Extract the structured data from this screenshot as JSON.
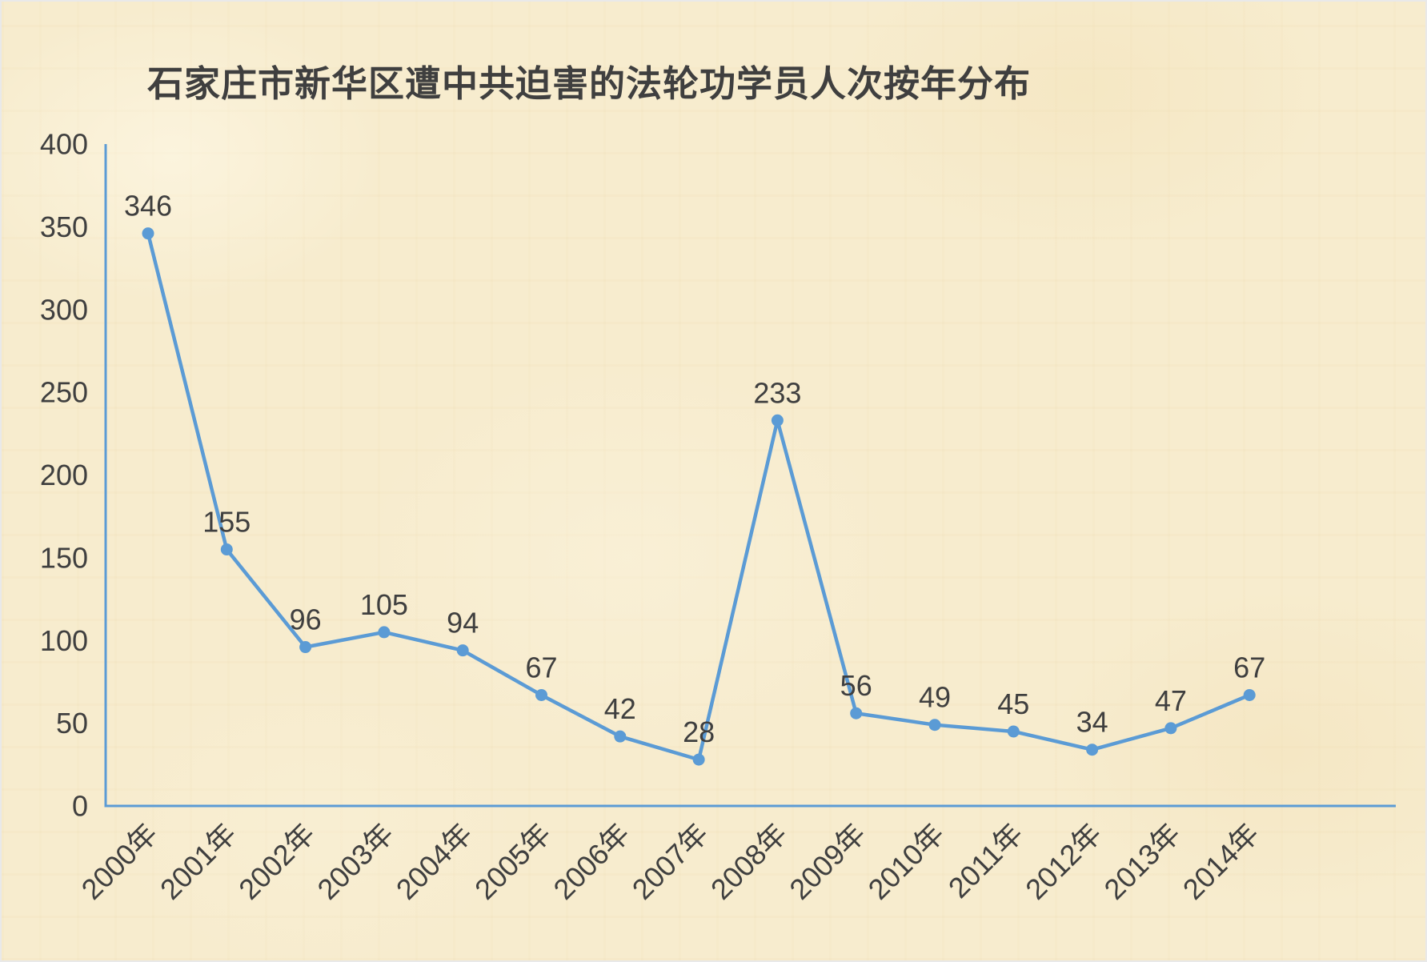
{
  "page": {
    "background_color": "#f7ecce",
    "border_color": "#e9e9e9",
    "text_color": "#3f3f3f"
  },
  "chart_data": {
    "type": "line",
    "title": "石家庄市新华区遭中共迫害的法轮功学员人次按年分布",
    "categories": [
      "2000年",
      "2001年",
      "2002年",
      "2003年",
      "2004年",
      "2005年",
      "2006年",
      "2007年",
      "2008年",
      "2009年",
      "2010年",
      "2011年",
      "2012年",
      "2013年",
      "2014年"
    ],
    "values": [
      346,
      155,
      96,
      105,
      94,
      67,
      42,
      28,
      233,
      56,
      49,
      45,
      34,
      47,
      67
    ],
    "data_labels_visible": true,
    "xlabel": "",
    "ylabel": "",
    "ylim": [
      0,
      400
    ],
    "ytick_step": 50,
    "yticks": [
      400,
      350,
      300,
      250,
      200,
      150,
      100,
      50,
      0
    ],
    "grid": false,
    "legend_position": "none",
    "line_color": "#5b9bd5",
    "marker": "circle",
    "marker_color": "#5b9bd5",
    "axis_color": "#5b9bd5",
    "label_color": "#3f3f3f",
    "x_tick_rotation_deg": 45
  }
}
